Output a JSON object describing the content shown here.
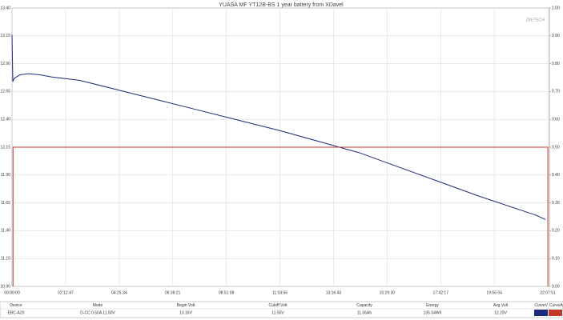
{
  "chart_data": {
    "type": "line",
    "title": "YUASA MF YT12B-BS 1 year battery from XDavel",
    "watermark": "ZKETECH",
    "xlim": [
      0,
      79900
    ],
    "xticks": [
      {
        "value": 0,
        "label": "00:00:00"
      },
      {
        "value": 7967,
        "label": "02:12:47"
      },
      {
        "value": 15934,
        "label": "04:25:34"
      },
      {
        "value": 23901,
        "label": "06:38:21"
      },
      {
        "value": 31868,
        "label": "08:51:08"
      },
      {
        "value": 39836,
        "label": "11:03:56"
      },
      {
        "value": 47803,
        "label": "13:16:43"
      },
      {
        "value": 55770,
        "label": "15:29:30"
      },
      {
        "value": 63737,
        "label": "17:42:17"
      },
      {
        "value": 71704,
        "label": "19:55:04"
      },
      {
        "value": 79671,
        "label": "22:07:51"
      }
    ],
    "ylim": [
      10.9,
      13.4
    ],
    "yticks": [
      {
        "value": 13.4,
        "label": "13.40"
      },
      13.15,
      {
        "value": 12.9,
        "label": "12.90"
      },
      12.65,
      {
        "value": 12.4,
        "label": "12.40"
      },
      12.15,
      {
        "value": 11.9,
        "label": "11.90"
      },
      11.65,
      {
        "value": 11.4,
        "label": "11.40"
      },
      11.15,
      {
        "value": 10.9,
        "label": "10.90"
      }
    ],
    "y2lim": [
      0,
      1
    ],
    "y2ticks": [
      {
        "value": 1,
        "label": "1.00"
      },
      {
        "value": 0.9,
        "label": "0.90"
      },
      {
        "value": 0.8,
        "label": "0.80"
      },
      {
        "value": 0.7,
        "label": "0.70"
      },
      {
        "value": 0.6,
        "label": "0.60"
      },
      {
        "value": 0.5,
        "label": "0.50"
      },
      {
        "value": 0.4,
        "label": "0.40"
      },
      {
        "value": 0.3,
        "label": "0.30"
      },
      {
        "value": 0.2,
        "label": "0.20"
      },
      {
        "value": 0.1,
        "label": "0.10"
      },
      {
        "value": 0,
        "label": "0.00"
      }
    ],
    "grid": true,
    "series": [
      {
        "name": "CurveV",
        "color": "#1c2a80",
        "x": [
          0,
          119,
          356,
          1187,
          2375,
          4156,
          5937,
          10092,
          16029,
          21965,
          27902,
          33838,
          39775,
          45711,
          51648,
          57584,
          63520,
          69457,
          75394,
          77887,
          79312
        ],
        "values": [
          13.16,
          12.74,
          12.77,
          12.8,
          12.81,
          12.8,
          12.78,
          12.75,
          12.66,
          12.57,
          12.48,
          12.39,
          12.3,
          12.2,
          12.1,
          11.97,
          11.84,
          11.71,
          11.59,
          11.54,
          11.5
        ]
      },
      {
        "name": "CurveA",
        "color": "#c0392b",
        "axis": "y2",
        "x": [
          150,
          150,
          79671,
          79671
        ],
        "values": [
          0,
          0.5,
          0.5,
          0
        ]
      }
    ]
  },
  "table": {
    "header": [
      "Device",
      "Mode",
      "Begin Volt",
      "Cutoff Volt",
      "Capacity",
      "Energy",
      "Avg Volt",
      "CurveV",
      "CurveA"
    ],
    "row": [
      "EBC-A20",
      "D-CC 0.50A 11.50V",
      "13.16V",
      "11.50V",
      "11.06Ah",
      "135.04Wh",
      "12.20V"
    ]
  }
}
